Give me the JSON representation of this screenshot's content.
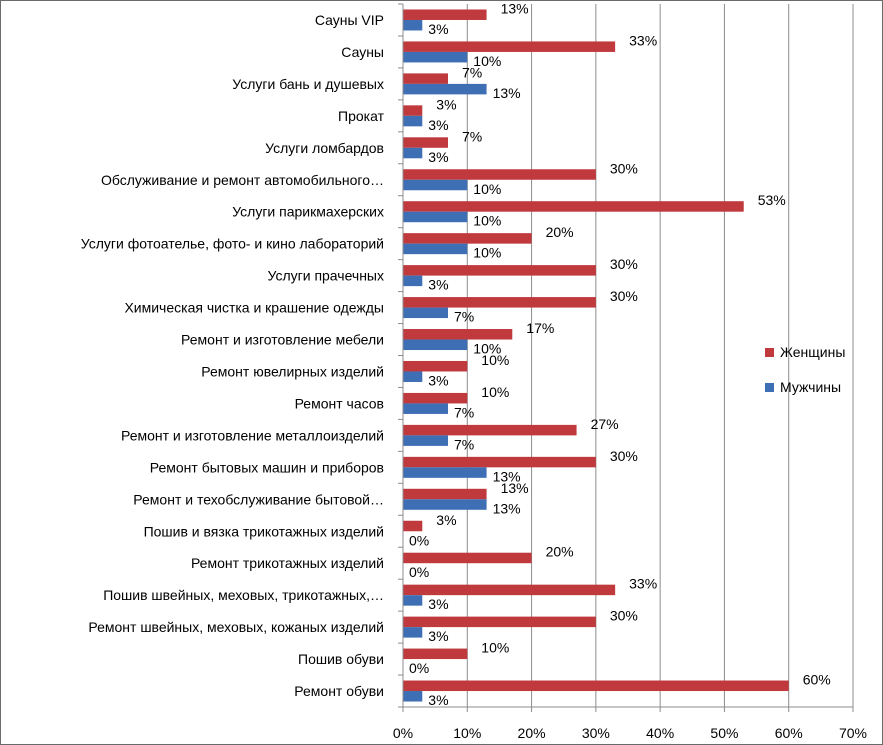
{
  "chart_data": {
    "type": "bar",
    "orientation": "horizontal",
    "categories": [
      "Сауны VIP",
      "Сауны",
      "Услуги бань и душевых",
      "Прокат",
      "Услуги ломбардов",
      "Обслуживание и ремонт автомобильного…",
      "Услуги парикмахерских",
      "Услуги фотоателье, фото- и кино лабораторий",
      "Услуги прачечных",
      "Химическая чистка и крашение одежды",
      "Ремонт и изготовление мебели",
      "Ремонт ювелирных изделий",
      "Ремонт часов",
      "Ремонт и изготовление металлоизделий",
      "Ремонт бытовых машин и приборов",
      "Ремонт и техобслуживание бытовой…",
      "Пошив и вязка трикотажных изделий",
      "Ремонт трикотажных изделий",
      "Пошив швейных, меховых, трикотажных,…",
      "Ремонт швейных, меховых, кожаных изделий",
      "Пошив обуви",
      "Ремонт обуви"
    ],
    "series": [
      {
        "name": "Женщины",
        "color": "#C0393D",
        "values": [
          13,
          33,
          7,
          3,
          7,
          30,
          53,
          20,
          30,
          30,
          17,
          10,
          10,
          27,
          30,
          13,
          3,
          20,
          33,
          30,
          10,
          60
        ],
        "labels": [
          "13%",
          "33%",
          "7%",
          "3%",
          "7%",
          "30%",
          "53%",
          "20%",
          "30%",
          "30%",
          "17%",
          "10%",
          "10%",
          "27%",
          "30%",
          "13%",
          "3%",
          "20%",
          "33%",
          "30%",
          "10%",
          "60%"
        ]
      },
      {
        "name": "Мужчины",
        "color": "#3E6FB5",
        "values": [
          3,
          10,
          13,
          3,
          3,
          10,
          10,
          10,
          3,
          7,
          10,
          3,
          7,
          7,
          13,
          13,
          0,
          0,
          3,
          3,
          0,
          3
        ],
        "labels": [
          "3%",
          "10%",
          "13%",
          "3%",
          "3%",
          "10%",
          "10%",
          "10%",
          "3%",
          "7%",
          "10%",
          "3%",
          "7%",
          "7%",
          "13%",
          "13%",
          "0%",
          "0%",
          "3%",
          "3%",
          "0%",
          "3%"
        ]
      }
    ],
    "xlim": [
      0,
      70
    ],
    "xticks": [
      0,
      10,
      20,
      30,
      40,
      50,
      60,
      70
    ],
    "xtick_labels": [
      "0%",
      "10%",
      "20%",
      "30%",
      "40%",
      "50%",
      "60%",
      "70%"
    ],
    "grid": true,
    "legend": "right",
    "title": "",
    "xlabel": "",
    "ylabel": ""
  }
}
